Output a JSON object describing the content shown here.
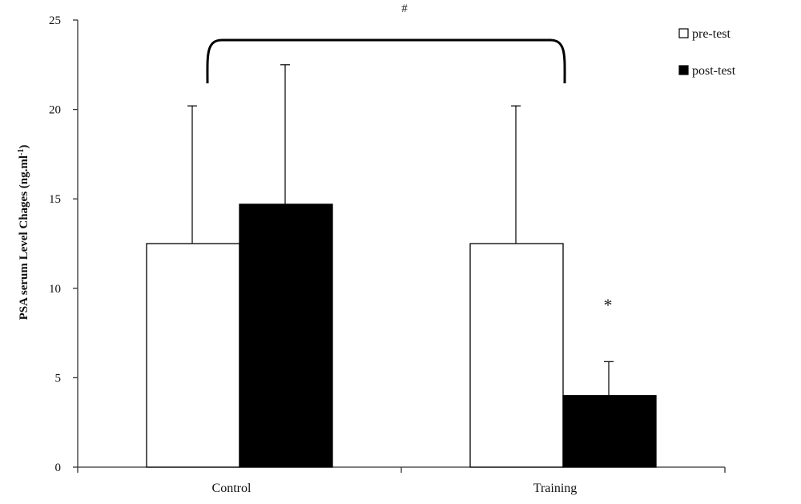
{
  "chart_data": {
    "type": "bar",
    "title": "",
    "xlabel": "",
    "ylabel": "PSA serum Level Chages (ng.ml",
    "ylabel_superscript": "-1",
    "ylabel_close": ")",
    "categories": [
      "Control",
      "Training"
    ],
    "series": [
      {
        "name": "pre-test",
        "color": "#ffffff",
        "values": [
          12.5,
          12.5
        ],
        "errors": [
          7.7,
          7.7
        ]
      },
      {
        "name": "post-test",
        "color": "#000000",
        "values": [
          14.7,
          4.0
        ],
        "errors": [
          7.8,
          1.9
        ]
      }
    ],
    "ylim": [
      0,
      25
    ],
    "yticks": [
      0,
      5,
      10,
      15,
      20,
      25
    ],
    "grid": false,
    "legend_position": "top-right",
    "annotations": {
      "group_comparison": "#",
      "within_group": "*"
    }
  }
}
